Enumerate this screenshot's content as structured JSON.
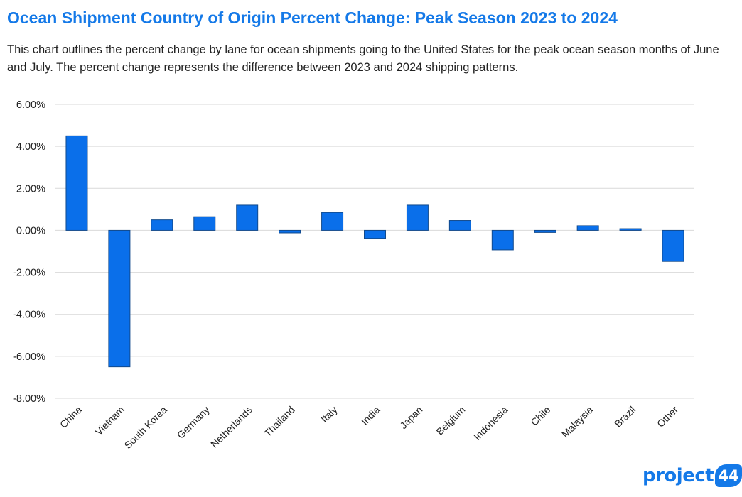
{
  "title": "Ocean Shipment Country of Origin Percent Change: Peak Season 2023 to 2024",
  "subtitle": "This chart outlines the percent change by lane for ocean shipments going to the United States for the peak ocean season months of June and July. The percent change represents the difference between 2023 and 2024 shipping patterns.",
  "logo": {
    "text": "project",
    "number": "44"
  },
  "colors": {
    "bar": "#0a6fea",
    "bar_outline": "#124a8c",
    "title": "#1479e8",
    "grid": "#d9d9d9"
  },
  "chart_data": {
    "type": "bar",
    "categories": [
      "China",
      "Vietnam",
      "South Korea",
      "Germany",
      "Netherlands",
      "Thailand",
      "Italy",
      "India",
      "Japan",
      "Belgium",
      "Indonesia",
      "Chile",
      "Malaysia",
      "Brazil",
      "Other"
    ],
    "values": [
      4.5,
      -6.5,
      0.5,
      0.65,
      1.2,
      -0.12,
      0.85,
      -0.38,
      1.2,
      0.47,
      -0.93,
      -0.1,
      0.22,
      0.08,
      -1.48
    ],
    "ylim": [
      -8,
      6
    ],
    "yticks": [
      6,
      4,
      2,
      0,
      -2,
      -4,
      -6,
      -8
    ],
    "ytick_labels": [
      "6.00%",
      "4.00%",
      "2.00%",
      "0.00%",
      "-2.00%",
      "-4.00%",
      "-6.00%",
      "-8.00%"
    ],
    "grid": true,
    "legend": "none"
  }
}
